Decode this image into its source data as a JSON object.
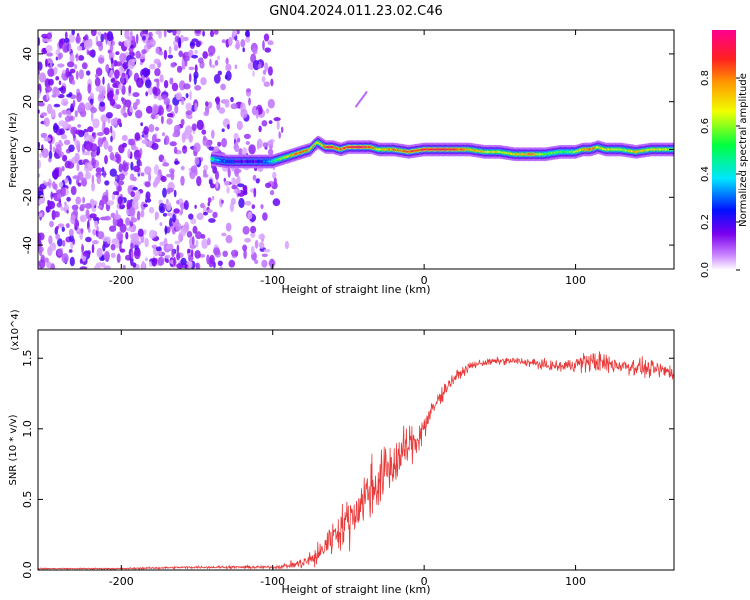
{
  "title": "GN04.2024.011.23.02.C46",
  "chart_data": [
    {
      "type": "heatmap",
      "xlabel": "Height of straight line (km)",
      "ylabel": "Frequency (Hz)",
      "xlim": [
        -255,
        165
      ],
      "ylim": [
        -50,
        50
      ],
      "xticks": [
        -200,
        -100,
        0,
        100
      ],
      "xticklabels": [
        "-200",
        "-100",
        "0",
        "100"
      ],
      "yticks": [
        -40,
        -20,
        0,
        20,
        40
      ],
      "yticklabels": [
        "-40",
        "-20",
        "0",
        "20",
        "40"
      ],
      "colorbar": {
        "label": "Normalized spectral amplitude",
        "range": [
          0,
          1
        ],
        "ticks": [
          0.0,
          0.2,
          0.4,
          0.6,
          0.8
        ],
        "ticklabels": [
          "0.0",
          "0.2",
          "0.4",
          "0.6",
          "0.8"
        ]
      },
      "ridge": {
        "x": [
          -140,
          -130,
          -120,
          -110,
          -105,
          -100,
          -95,
          -90,
          -85,
          -80,
          -75,
          -72,
          -70,
          -65,
          -60,
          -55,
          -50,
          -45,
          -40,
          -35,
          -30,
          -20,
          -10,
          0,
          10,
          20,
          30,
          40,
          50,
          60,
          70,
          80,
          90,
          100,
          105,
          110,
          115,
          120,
          130,
          140,
          150,
          160,
          165
        ],
        "y": [
          -4,
          -5,
          -5,
          -5,
          -5,
          -5,
          -4,
          -3,
          -2,
          -1,
          0,
          2,
          3,
          1,
          1,
          0,
          1,
          1,
          1,
          1,
          0,
          0,
          -1,
          0,
          0,
          0,
          0,
          -1,
          -1,
          -2,
          -2,
          -2,
          -1,
          -1,
          0,
          0,
          1,
          0,
          0,
          -1,
          0,
          0,
          0
        ],
        "amplitude": [
          0.5,
          0.25,
          0.2,
          0.2,
          0.3,
          0.45,
          0.6,
          0.65,
          0.8,
          0.85,
          0.75,
          0.7,
          0.6,
          0.85,
          0.9,
          0.8,
          0.85,
          0.95,
          0.9,
          0.85,
          0.7,
          0.8,
          0.85,
          0.9,
          0.95,
          0.9,
          0.75,
          0.7,
          0.65,
          0.7,
          0.8,
          0.6,
          0.55,
          0.6,
          0.75,
          0.85,
          0.7,
          0.7,
          0.6,
          0.75,
          0.7,
          0.65,
          0.6
        ]
      }
    },
    {
      "type": "line",
      "xlabel": "Height of straight line (km)",
      "ylabel": "SNR (10 * v/v)",
      "exponent": "(x10^4)",
      "xlim": [
        -255,
        165
      ],
      "ylim": [
        0,
        1.7
      ],
      "xticks": [
        -200,
        -100,
        0,
        100
      ],
      "xticklabels": [
        "-200",
        "-100",
        "0",
        "100"
      ],
      "yticks": [
        0.0,
        0.5,
        1.0,
        1.5
      ],
      "yticklabels": [
        "0.0",
        "0.5",
        "1.0",
        "1.5"
      ],
      "color": "#e83a3a",
      "series": [
        {
          "x": [
            -255,
            -200,
            -150,
            -120,
            -100,
            -90,
            -80,
            -70,
            -65,
            -60,
            -55,
            -50,
            -45,
            -40,
            -35,
            -30,
            -25,
            -20,
            -15,
            -10,
            -5,
            0,
            5,
            10,
            15,
            20,
            25,
            30,
            35,
            40,
            50,
            60,
            70,
            80,
            90,
            100,
            110,
            120,
            130,
            140,
            150,
            160,
            165
          ],
          "values": [
            0.01,
            0.01,
            0.02,
            0.02,
            0.02,
            0.03,
            0.05,
            0.1,
            0.18,
            0.25,
            0.3,
            0.35,
            0.42,
            0.5,
            0.58,
            0.62,
            0.7,
            0.75,
            0.82,
            0.88,
            0.92,
            1.02,
            1.12,
            1.22,
            1.3,
            1.36,
            1.4,
            1.44,
            1.46,
            1.47,
            1.48,
            1.48,
            1.47,
            1.45,
            1.44,
            1.46,
            1.48,
            1.46,
            1.45,
            1.44,
            1.42,
            1.41,
            1.4
          ],
          "noise": [
            0.004,
            0.005,
            0.008,
            0.01,
            0.01,
            0.02,
            0.04,
            0.08,
            0.1,
            0.12,
            0.14,
            0.16,
            0.18,
            0.2,
            0.2,
            0.2,
            0.2,
            0.18,
            0.16,
            0.14,
            0.12,
            0.1,
            0.08,
            0.06,
            0.05,
            0.04,
            0.03,
            0.03,
            0.025,
            0.025,
            0.025,
            0.025,
            0.03,
            0.035,
            0.04,
            0.05,
            0.08,
            0.07,
            0.06,
            0.06,
            0.06,
            0.06,
            0.06
          ]
        }
      ]
    }
  ]
}
